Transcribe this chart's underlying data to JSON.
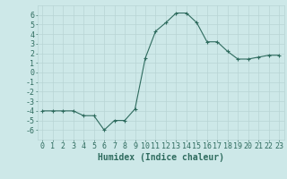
{
  "x": [
    0,
    1,
    2,
    3,
    4,
    5,
    6,
    7,
    8,
    9,
    10,
    11,
    12,
    13,
    14,
    15,
    16,
    17,
    18,
    19,
    20,
    21,
    22,
    23
  ],
  "y": [
    -4,
    -4,
    -4,
    -4,
    -4.5,
    -4.5,
    -6,
    -5,
    -5,
    -3.8,
    1.5,
    4.3,
    5.2,
    6.2,
    6.2,
    5.2,
    3.2,
    3.2,
    2.2,
    1.4,
    1.4,
    1.6,
    1.8,
    1.8
  ],
  "line_color": "#2e6b5e",
  "marker": "+",
  "bg_color": "#cde8e8",
  "grid_color": "#b8d4d4",
  "xlabel": "Humidex (Indice chaleur)",
  "xlim": [
    -0.5,
    23.5
  ],
  "ylim": [
    -7,
    7
  ],
  "yticks": [
    -6,
    -5,
    -4,
    -3,
    -2,
    -1,
    0,
    1,
    2,
    3,
    4,
    5,
    6
  ],
  "xticks": [
    0,
    1,
    2,
    3,
    4,
    5,
    6,
    7,
    8,
    9,
    10,
    11,
    12,
    13,
    14,
    15,
    16,
    17,
    18,
    19,
    20,
    21,
    22,
    23
  ],
  "tick_font_size": 6,
  "xlabel_font_size": 7,
  "line_width": 0.8,
  "marker_size": 3
}
